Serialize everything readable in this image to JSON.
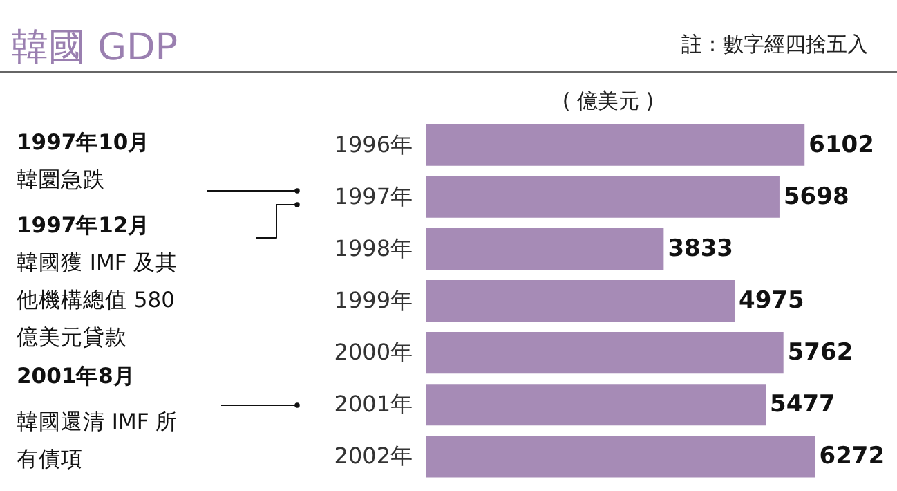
{
  "chart_data": {
    "type": "bar",
    "orientation": "horizontal",
    "title": "韓國 GDP",
    "xlabel": "( 億美元 )",
    "categories": [
      "1996年",
      "1997年",
      "1998年",
      "1999年",
      "2000年",
      "2001年",
      "2002年"
    ],
    "values": [
      6102,
      5698,
      3833,
      4975,
      5762,
      5477,
      6272
    ],
    "color": "#a68bb6",
    "data_labels": true,
    "annotations": [
      "註：數字經四捨五入",
      "1997年10月",
      "韓圜急跌",
      "1997年12月",
      "韓國獲 IMF 及其他機構總值 580億美元貸款",
      "2001年8月",
      "韓國還清 IMF 所有債項"
    ]
  }
}
